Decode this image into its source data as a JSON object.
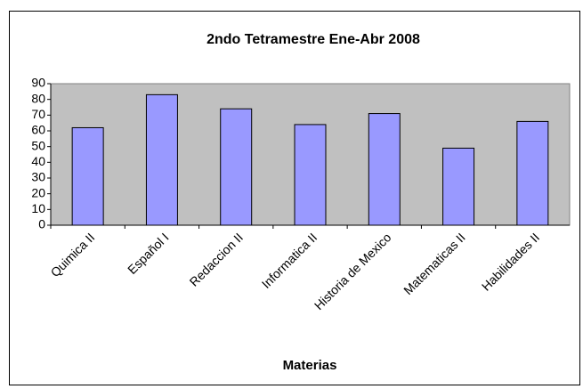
{
  "chart_data": {
    "type": "bar",
    "title": "2ndo Tetramestre Ene-Abr 2008",
    "x_label": "Materias",
    "categories": [
      "Quimica II",
      "Español I",
      "Redaccion II",
      "Informatica II",
      "Historia de Mexico",
      "Matematicas II",
      "Habilidades II"
    ],
    "values": [
      62,
      83,
      74,
      64,
      71,
      49,
      66
    ],
    "color": "#9999ff",
    "ylim": [
      0,
      90
    ],
    "yticks": [
      0,
      10,
      20,
      30,
      40,
      50,
      60,
      70,
      80,
      90
    ],
    "grid": false,
    "plot_background": "#c0c0c0"
  }
}
